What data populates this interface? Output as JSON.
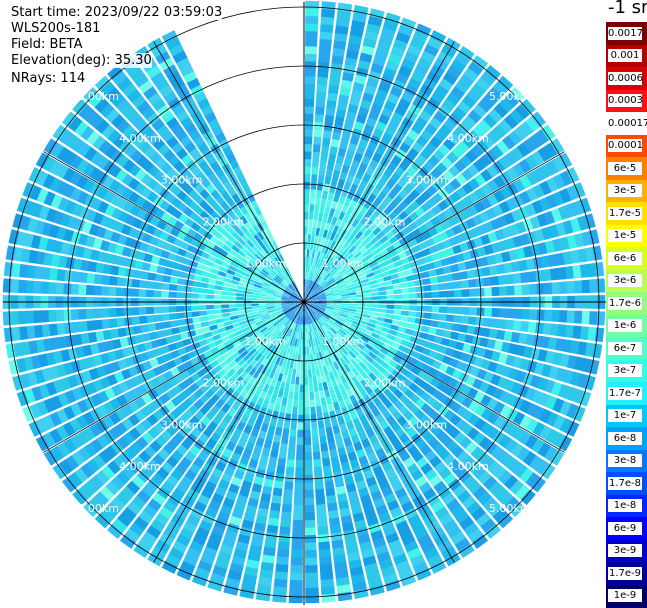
{
  "info": {
    "start_time": "Start time: 2023/09/22 03:59:03",
    "device": "WLS200s-181",
    "field": "Field: BETA",
    "elevation": "Elevation(deg): 35.30",
    "nrays": "NRays: 114"
  },
  "colorbar": {
    "unit": "-1 sr",
    "labels": [
      "0.0017",
      "0.001",
      "0.0006",
      "0.0003",
      "0.00017",
      "0.0001",
      "6e-5",
      "3e-5",
      "1.7e-5",
      "1e-5",
      "6e-6",
      "3e-6",
      "1.7e-6",
      "1e-6",
      "6e-7",
      "3e-7",
      "1.7e-7",
      "1e-7",
      "6e-8",
      "3e-8",
      "1.7e-8",
      "1e-8",
      "6e-9",
      "3e-9",
      "1.7e-9",
      "1e-9"
    ],
    "colors": [
      "#7a0000",
      "#b00000",
      "#d80000",
      "#ff1010",
      "#ffffff",
      "#ff4a00",
      "#ff8000",
      "#ffb000",
      "#ffe000",
      "#ffff00",
      "#d8ff20",
      "#b8ff50",
      "#90ff80",
      "#70ffa0",
      "#50ffc8",
      "#30ffe8",
      "#20f0ff",
      "#00c8ff",
      "#00a0ff",
      "#0078ff",
      "#0050ff",
      "#0028ff",
      "#0000ff",
      "#0000c8",
      "#000096",
      "#000064"
    ]
  },
  "chart_data": {
    "type": "heatmap",
    "projection": "polar-ppi",
    "rings_km": [
      1,
      2,
      3,
      4,
      5
    ],
    "ring_labels": [
      "1.00km",
      "2.00km",
      "3.00km",
      "4.00km",
      "5.00km"
    ],
    "max_range_km": 5.1,
    "spoke_interval_deg": 30,
    "nrays": 114,
    "missing_sector_azimuth_deg": [
      336,
      360
    ],
    "dominant_levels": {
      "inner_1_to_2km": "1.7e-7",
      "outer_2_to_5km": "6e-8",
      "center": "3e-8"
    }
  }
}
